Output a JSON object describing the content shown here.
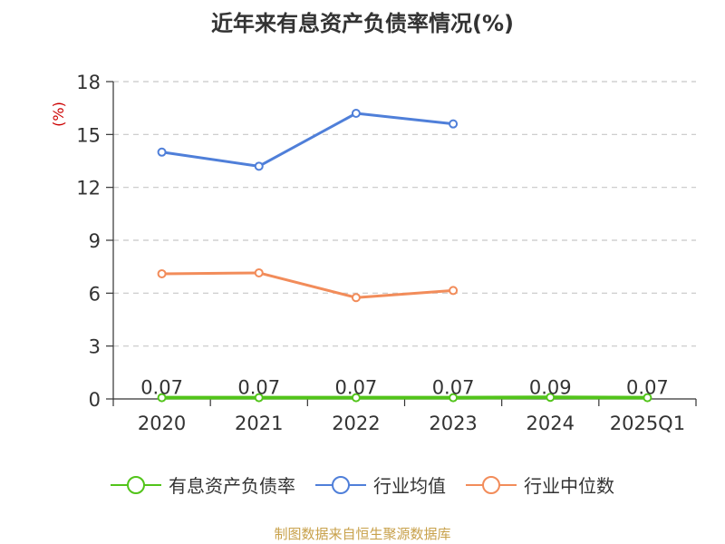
{
  "chart_data": {
    "type": "line",
    "title": "近年来有息资产负债率情况(%)",
    "ylabel": "(%)",
    "categories": [
      "2020",
      "2021",
      "2022",
      "2023",
      "2024",
      "2025Q1"
    ],
    "yticks": [
      0,
      3,
      6,
      9,
      12,
      15,
      18
    ],
    "ylim": [
      0,
      18
    ],
    "grid": true,
    "legend_position": "bottom",
    "series": [
      {
        "name": "有息资产负债率",
        "color": "#52c41a",
        "values": [
          0.07,
          0.07,
          0.07,
          0.07,
          0.09,
          0.07
        ],
        "labels": [
          "0.07",
          "0.07",
          "0.07",
          "0.07",
          "0.09",
          "0.07"
        ]
      },
      {
        "name": "行业均值",
        "color": "#4f7fd9",
        "values": [
          14.0,
          13.2,
          16.2,
          15.6,
          null,
          null
        ]
      },
      {
        "name": "行业中位数",
        "color": "#f28c5a",
        "values": [
          7.1,
          7.15,
          5.75,
          6.15,
          null,
          null
        ]
      }
    ]
  },
  "footer": {
    "source": "制图数据来自恒生聚源数据库"
  }
}
